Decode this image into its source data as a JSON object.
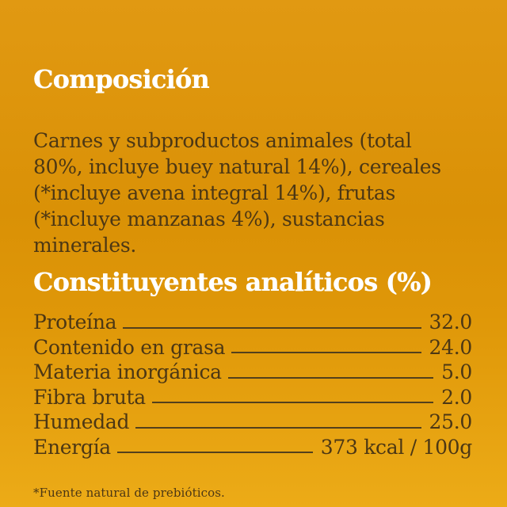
{
  "colors": {
    "background_top": "#e19912",
    "background_mid": "#da9106",
    "background_bottom": "#ecab17",
    "heading_text": "#ffffff",
    "body_text": "#4c3714",
    "leader_line": "#53401c"
  },
  "composition": {
    "title": "Composición",
    "body": "Carnes y subproductos animales (total\n80%, incluye buey natural 14%), cereales\n(*incluye avena integral 14%), frutas\n(*incluye manzanas 4%), sustancias\nminerales."
  },
  "analytical": {
    "title": "Constituyentes analíticos (%)",
    "rows": [
      {
        "label": "Proteína",
        "value": "32.0"
      },
      {
        "label": "Contenido en grasa",
        "value": "24.0"
      },
      {
        "label": "Materia inorgánica",
        "value": "5.0"
      },
      {
        "label": "Fibra bruta",
        "value": "2.0"
      },
      {
        "label": "Humedad",
        "value": "25.0"
      },
      {
        "label": "Energía",
        "value": "373 kcal / 100g"
      }
    ]
  },
  "footnote": "*Fuente natural de prebióticos."
}
